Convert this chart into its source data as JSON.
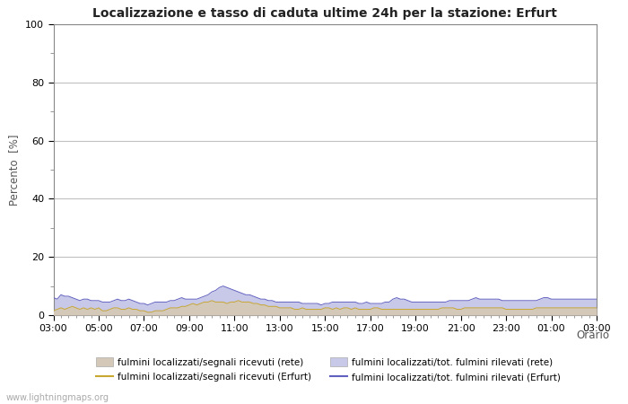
{
  "title": "Localizzazione e tasso di caduta ultime 24h per la stazione: Erfurt",
  "xlabel": "Orario",
  "ylabel": "Percento  [%]",
  "ylim": [
    0,
    100
  ],
  "yticks": [
    0,
    20,
    40,
    60,
    80,
    100
  ],
  "yticks_minor": [
    10,
    30,
    50,
    70,
    90
  ],
  "x_labels": [
    "03:00",
    "05:00",
    "07:00",
    "09:00",
    "11:00",
    "13:00",
    "15:00",
    "17:00",
    "19:00",
    "21:00",
    "23:00",
    "01:00",
    "03:00"
  ],
  "background_color": "#ffffff",
  "plot_bg_color": "#ffffff",
  "grid_color": "#c0c0c0",
  "watermark": "www.lightningmaps.org",
  "fill_rete_color": "#d4c8b8",
  "fill_erfurt_color": "#c8c8e8",
  "line_rete_color": "#c8a830",
  "line_erfurt_color": "#6060c0",
  "x_values": [
    0,
    1,
    2,
    3,
    4,
    5,
    6,
    7,
    8,
    9,
    10,
    11,
    12,
    13,
    14,
    15,
    16,
    17,
    18,
    19,
    20,
    21,
    22,
    23,
    24,
    25,
    26,
    27,
    28,
    29,
    30,
    31,
    32,
    33,
    34,
    35,
    36,
    37,
    38,
    39,
    40,
    41,
    42,
    43,
    44,
    45,
    46,
    47,
    48,
    49,
    50,
    51,
    52,
    53,
    54,
    55,
    56,
    57,
    58,
    59,
    60,
    61,
    62,
    63,
    64,
    65,
    66,
    67,
    68,
    69,
    70,
    71,
    72,
    73,
    74,
    75,
    76,
    77,
    78,
    79,
    80,
    81,
    82,
    83,
    84,
    85,
    86,
    87,
    88,
    89,
    90,
    91,
    92,
    93,
    94,
    95,
    96,
    97,
    98,
    99,
    100,
    101,
    102,
    103,
    104,
    105,
    106,
    107,
    108,
    109,
    110,
    111,
    112,
    113,
    114,
    115,
    116,
    117,
    118,
    119,
    120,
    121,
    122,
    123,
    124,
    125,
    126,
    127,
    128,
    129,
    130,
    131,
    132,
    133,
    134,
    135,
    136,
    137,
    138,
    139,
    140,
    141,
    142,
    143,
    144
  ],
  "rete_fill": [
    1.5,
    2.0,
    2.5,
    2.0,
    2.5,
    3.0,
    2.5,
    2.0,
    2.5,
    2.0,
    2.5,
    2.0,
    2.5,
    1.5,
    1.5,
    2.0,
    2.5,
    2.5,
    2.0,
    2.0,
    2.5,
    2.0,
    2.0,
    1.5,
    1.5,
    1.0,
    1.0,
    1.5,
    1.5,
    1.5,
    2.0,
    2.5,
    2.5,
    2.5,
    3.0,
    3.0,
    3.5,
    4.0,
    3.5,
    4.0,
    4.5,
    4.5,
    5.0,
    4.5,
    4.5,
    4.5,
    4.0,
    4.5,
    4.5,
    5.0,
    4.5,
    4.5,
    4.5,
    4.0,
    4.0,
    3.5,
    3.5,
    3.0,
    3.0,
    3.0,
    2.5,
    2.5,
    2.5,
    2.5,
    2.0,
    2.0,
    2.5,
    2.0,
    2.0,
    2.0,
    2.0,
    2.0,
    2.5,
    2.5,
    2.0,
    2.5,
    2.0,
    2.5,
    2.5,
    2.0,
    2.5,
    2.0,
    2.0,
    2.0,
    2.0,
    2.5,
    2.5,
    2.0,
    2.0,
    2.0,
    2.0,
    2.0,
    2.0,
    2.0,
    2.0,
    2.0,
    2.0,
    2.0,
    2.0,
    2.0,
    2.0,
    2.0,
    2.0,
    2.5,
    2.5,
    2.5,
    2.5,
    2.0,
    2.0,
    2.5,
    2.5,
    2.5,
    2.5,
    2.5,
    2.5,
    2.5,
    2.5,
    2.5,
    2.5,
    2.5,
    2.0,
    2.0,
    2.0,
    2.0,
    2.0,
    2.0,
    2.0,
    2.0,
    2.5,
    2.5,
    2.5,
    2.5,
    2.5,
    2.5,
    2.5,
    2.5,
    2.5,
    2.5,
    2.5,
    2.5,
    2.5,
    2.5,
    2.5,
    2.5,
    2.5
  ],
  "erfurt_fill": [
    6.0,
    5.5,
    7.0,
    6.5,
    6.5,
    6.0,
    5.5,
    5.0,
    5.5,
    5.5,
    5.0,
    5.0,
    5.0,
    4.5,
    4.5,
    4.5,
    5.0,
    5.5,
    5.0,
    5.0,
    5.5,
    5.0,
    4.5,
    4.0,
    4.0,
    3.5,
    4.0,
    4.5,
    4.5,
    4.5,
    4.5,
    5.0,
    5.0,
    5.5,
    6.0,
    5.5,
    5.5,
    5.5,
    5.5,
    6.0,
    6.5,
    7.0,
    8.0,
    8.5,
    9.5,
    10.0,
    9.5,
    9.0,
    8.5,
    8.0,
    7.5,
    7.0,
    7.0,
    6.5,
    6.0,
    5.5,
    5.5,
    5.0,
    5.0,
    4.5,
    4.5,
    4.5,
    4.5,
    4.5,
    4.5,
    4.5,
    4.0,
    4.0,
    4.0,
    4.0,
    4.0,
    3.5,
    4.0,
    4.0,
    4.5,
    4.5,
    4.5,
    4.5,
    4.5,
    4.5,
    4.5,
    4.0,
    4.0,
    4.5,
    4.0,
    4.0,
    4.0,
    4.0,
    4.5,
    4.5,
    5.5,
    6.0,
    5.5,
    5.5,
    5.0,
    4.5,
    4.5,
    4.5,
    4.5,
    4.5,
    4.5,
    4.5,
    4.5,
    4.5,
    4.5,
    5.0,
    5.0,
    5.0,
    5.0,
    5.0,
    5.0,
    5.5,
    6.0,
    5.5,
    5.5,
    5.5,
    5.5,
    5.5,
    5.5,
    5.0,
    5.0,
    5.0,
    5.0,
    5.0,
    5.0,
    5.0,
    5.0,
    5.0,
    5.0,
    5.5,
    6.0,
    6.0,
    5.5,
    5.5,
    5.5,
    5.5,
    5.5,
    5.5,
    5.5,
    5.5,
    5.5,
    5.5,
    5.5,
    5.5,
    5.5
  ],
  "legend_items": [
    {
      "label": "fulmini localizzati/segnali ricevuti (rete)",
      "type": "fill",
      "color": "#d4c8b8"
    },
    {
      "label": "fulmini localizzati/segnali ricevuti (Erfurt)",
      "type": "line",
      "color": "#c8a830"
    },
    {
      "label": "fulmini localizzati/tot. fulmini rilevati (rete)",
      "type": "fill",
      "color": "#c8c8e8"
    },
    {
      "label": "fulmini localizzati/tot. fulmini rilevati (Erfurt)",
      "type": "line",
      "color": "#6060c0"
    }
  ]
}
